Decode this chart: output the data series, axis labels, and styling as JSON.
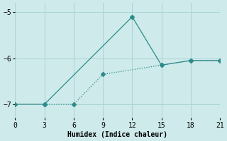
{
  "line1_x": [
    0,
    3,
    12,
    15,
    18,
    21
  ],
  "line1_y": [
    -7.0,
    -7.0,
    -5.1,
    -6.15,
    -6.05,
    -6.05
  ],
  "line2_x": [
    3,
    6,
    9,
    15,
    18,
    21
  ],
  "line2_y": [
    -7.0,
    -7.0,
    -6.35,
    -6.15,
    -6.05,
    -6.05
  ],
  "line_color": "#2e8b8b",
  "marker_size": 3,
  "xlim": [
    0,
    21
  ],
  "ylim": [
    -7.3,
    -4.8
  ],
  "xticks": [
    0,
    3,
    6,
    9,
    12,
    15,
    18,
    21
  ],
  "yticks": [
    -7,
    -6,
    -5
  ],
  "xlabel": "Humidex (Indice chaleur)",
  "bg_color": "#ceeaea",
  "grid_color": "#aad4d4",
  "label_fontsize": 7,
  "tick_fontsize": 7
}
